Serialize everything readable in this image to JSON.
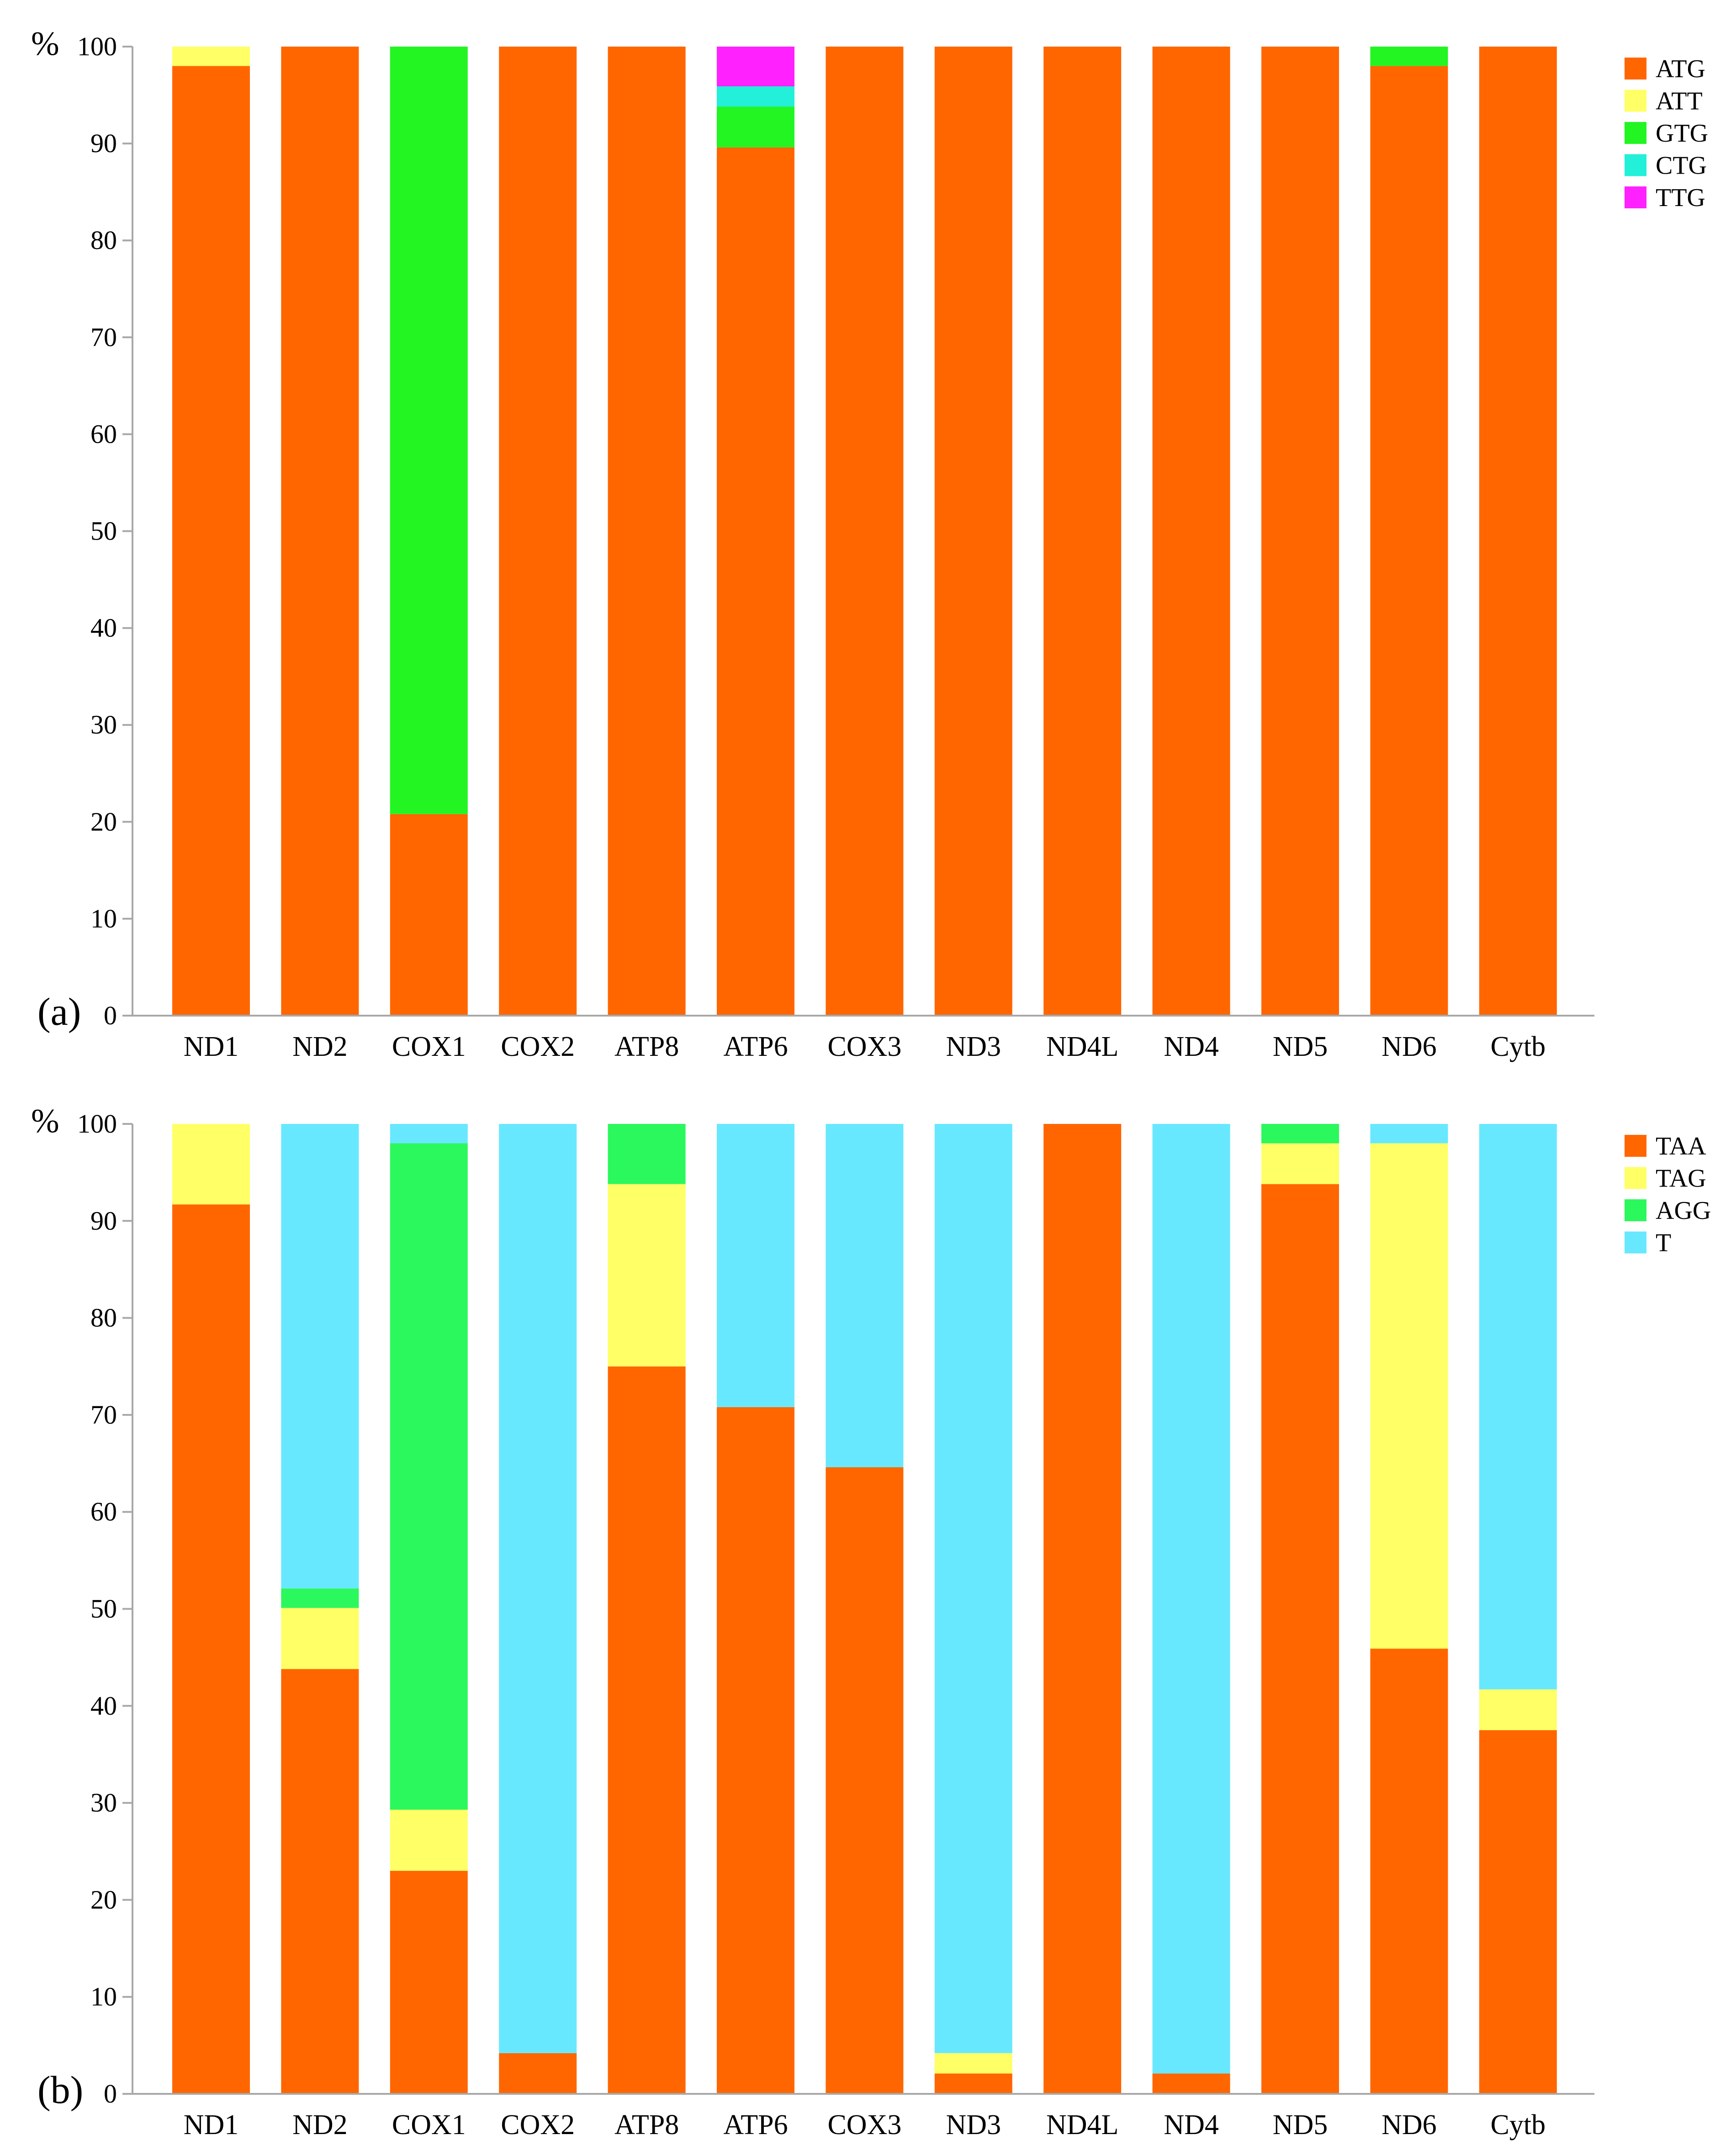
{
  "chart_data": [
    {
      "type": "bar",
      "stacked": true,
      "panel_label": "(a)",
      "unit_label": "%",
      "categories": [
        "ND1",
        "ND2",
        "COX1",
        "COX2",
        "ATP8",
        "ATP6",
        "COX3",
        "ND3",
        "ND4L",
        "ND4",
        "ND5",
        "ND6",
        "Cytb"
      ],
      "ylim": [
        0,
        100
      ],
      "yticks": [
        0,
        10,
        20,
        30,
        40,
        50,
        60,
        70,
        80,
        90,
        100
      ],
      "legend_position": "top-right",
      "series": [
        {
          "name": "ATG",
          "color": "#FF6600",
          "values": [
            98,
            100,
            20.8,
            100,
            100,
            89.6,
            100,
            100,
            100,
            100,
            100,
            98,
            100
          ]
        },
        {
          "name": "ATT",
          "color": "#FFFF66",
          "values": [
            2,
            0,
            0,
            0,
            0,
            0,
            0,
            0,
            0,
            0,
            0,
            0,
            0
          ]
        },
        {
          "name": "GTG",
          "color": "#22F522",
          "values": [
            0,
            0,
            79.2,
            0,
            0,
            4.2,
            0,
            0,
            0,
            0,
            0,
            2,
            0
          ]
        },
        {
          "name": "CTG",
          "color": "#22F0D8",
          "values": [
            0,
            0,
            0,
            0,
            0,
            2.1,
            0,
            0,
            0,
            0,
            0,
            0,
            0
          ]
        },
        {
          "name": "TTG",
          "color": "#FF22FF",
          "values": [
            0,
            0,
            0,
            0,
            0,
            4.1,
            0,
            0,
            0,
            0,
            0,
            0,
            0
          ]
        }
      ]
    },
    {
      "type": "bar",
      "stacked": true,
      "panel_label": "(b)",
      "unit_label": "%",
      "categories": [
        "ND1",
        "ND2",
        "COX1",
        "COX2",
        "ATP8",
        "ATP6",
        "COX3",
        "ND3",
        "ND4L",
        "ND4",
        "ND5",
        "ND6",
        "Cytb"
      ],
      "ylim": [
        0,
        100
      ],
      "yticks": [
        0,
        10,
        20,
        30,
        40,
        50,
        60,
        70,
        80,
        90,
        100
      ],
      "legend_position": "top-right",
      "series": [
        {
          "name": "TAA",
          "color": "#FF6600",
          "values": [
            91.7,
            43.8,
            23,
            4.2,
            75,
            70.8,
            64.6,
            2.1,
            100,
            2.1,
            93.8,
            45.9,
            37.5
          ]
        },
        {
          "name": "TAG",
          "color": "#FFFF66",
          "values": [
            8.3,
            6.3,
            6.3,
            0,
            18.8,
            0,
            0,
            2.1,
            0,
            0,
            4.2,
            52.1,
            4.2
          ]
        },
        {
          "name": "AGG",
          "color": "#2BF85C",
          "values": [
            0,
            2,
            68.7,
            0,
            6.2,
            0,
            0,
            0,
            0,
            0,
            2,
            0,
            0
          ]
        },
        {
          "name": "T",
          "color": "#68E8FF",
          "values": [
            0,
            47.9,
            2,
            95.8,
            0,
            29.2,
            35.4,
            95.8,
            0,
            97.9,
            0,
            2,
            58.3
          ]
        }
      ]
    }
  ]
}
